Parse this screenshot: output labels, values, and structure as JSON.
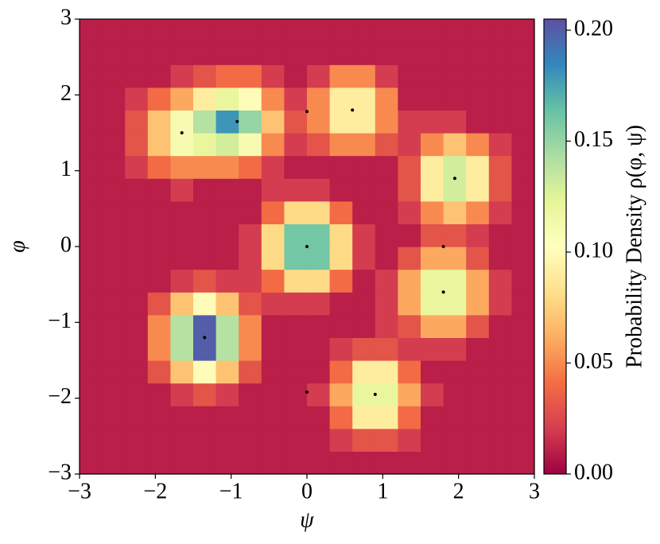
{
  "chart_data": {
    "type": "heatmap",
    "xlabel": "ψ",
    "ylabel": "φ",
    "xlim": [
      -3,
      3
    ],
    "ylim": [
      -3,
      3
    ],
    "xticks": [
      {
        "value": -3,
        "label": "−3"
      },
      {
        "value": -2,
        "label": "−2"
      },
      {
        "value": -1,
        "label": "−1"
      },
      0,
      1,
      2,
      3
    ],
    "yticks": [
      {
        "value": -3,
        "label": "−3"
      },
      {
        "value": -2,
        "label": "−2"
      },
      {
        "value": -1,
        "label": "−1"
      },
      0,
      1,
      2,
      3
    ],
    "values": [
      [
        0.01,
        0.01,
        0.01,
        0.01,
        0.01,
        0.01,
        0.01,
        0.01,
        0.01,
        0.01,
        0.01,
        0.01,
        0.01,
        0.01,
        0.01,
        0.01,
        0.01,
        0.01,
        0.01,
        0.01
      ],
      [
        0.01,
        0.01,
        0.01,
        0.01,
        0.01,
        0.01,
        0.01,
        0.01,
        0.01,
        0.01,
        0.01,
        0.02,
        0.03,
        0.03,
        0.02,
        0.01,
        0.01,
        0.01,
        0.01,
        0.01
      ],
      [
        0.01,
        0.01,
        0.01,
        0.01,
        0.01,
        0.01,
        0.01,
        0.01,
        0.01,
        0.01,
        0.01,
        0.04,
        0.09,
        0.09,
        0.04,
        0.01,
        0.01,
        0.01,
        0.01,
        0.01
      ],
      [
        0.01,
        0.01,
        0.01,
        0.01,
        0.02,
        0.03,
        0.02,
        0.01,
        0.01,
        0.01,
        0.02,
        0.06,
        0.12,
        0.12,
        0.06,
        0.02,
        0.01,
        0.01,
        0.01,
        0.01
      ],
      [
        0.01,
        0.01,
        0.01,
        0.03,
        0.07,
        0.1,
        0.07,
        0.03,
        0.01,
        0.01,
        0.01,
        0.04,
        0.09,
        0.09,
        0.04,
        0.01,
        0.01,
        0.01,
        0.01,
        0.01
      ],
      [
        0.01,
        0.01,
        0.01,
        0.05,
        0.14,
        0.2,
        0.14,
        0.05,
        0.01,
        0.01,
        0.01,
        0.02,
        0.03,
        0.03,
        0.02,
        0.02,
        0.02,
        0.01,
        0.01,
        0.01
      ],
      [
        0.01,
        0.01,
        0.01,
        0.05,
        0.14,
        0.2,
        0.14,
        0.05,
        0.01,
        0.01,
        0.01,
        0.01,
        0.01,
        0.02,
        0.03,
        0.06,
        0.06,
        0.03,
        0.01,
        0.01
      ],
      [
        0.01,
        0.01,
        0.01,
        0.03,
        0.07,
        0.1,
        0.07,
        0.03,
        0.02,
        0.02,
        0.02,
        0.01,
        0.01,
        0.02,
        0.06,
        0.12,
        0.12,
        0.06,
        0.02,
        0.01
      ],
      [
        0.01,
        0.01,
        0.01,
        0.01,
        0.02,
        0.03,
        0.02,
        0.02,
        0.04,
        0.08,
        0.08,
        0.04,
        0.01,
        0.02,
        0.06,
        0.12,
        0.12,
        0.06,
        0.02,
        0.01
      ],
      [
        0.01,
        0.01,
        0.01,
        0.01,
        0.01,
        0.01,
        0.01,
        0.02,
        0.08,
        0.16,
        0.16,
        0.08,
        0.02,
        0.01,
        0.03,
        0.06,
        0.06,
        0.03,
        0.01,
        0.01
      ],
      [
        0.01,
        0.01,
        0.01,
        0.01,
        0.01,
        0.01,
        0.01,
        0.02,
        0.08,
        0.16,
        0.16,
        0.08,
        0.02,
        0.01,
        0.01,
        0.03,
        0.03,
        0.02,
        0.01,
        0.01
      ],
      [
        0.01,
        0.01,
        0.01,
        0.01,
        0.01,
        0.01,
        0.01,
        0.01,
        0.04,
        0.08,
        0.08,
        0.04,
        0.01,
        0.01,
        0.02,
        0.05,
        0.07,
        0.05,
        0.02,
        0.01
      ],
      [
        0.01,
        0.01,
        0.01,
        0.01,
        0.02,
        0.01,
        0.01,
        0.01,
        0.02,
        0.02,
        0.02,
        0.01,
        0.01,
        0.01,
        0.03,
        0.09,
        0.13,
        0.09,
        0.03,
        0.01
      ],
      [
        0.01,
        0.01,
        0.02,
        0.04,
        0.05,
        0.05,
        0.05,
        0.04,
        0.02,
        0.01,
        0.01,
        0.01,
        0.01,
        0.01,
        0.03,
        0.09,
        0.13,
        0.09,
        0.03,
        0.01
      ],
      [
        0.01,
        0.01,
        0.03,
        0.07,
        0.11,
        0.12,
        0.13,
        0.11,
        0.05,
        0.02,
        0.03,
        0.05,
        0.05,
        0.03,
        0.02,
        0.05,
        0.07,
        0.05,
        0.02,
        0.01
      ],
      [
        0.01,
        0.01,
        0.03,
        0.07,
        0.11,
        0.14,
        0.18,
        0.15,
        0.07,
        0.03,
        0.05,
        0.09,
        0.09,
        0.05,
        0.02,
        0.02,
        0.02,
        0.01,
        0.01,
        0.01
      ],
      [
        0.01,
        0.01,
        0.02,
        0.04,
        0.06,
        0.09,
        0.12,
        0.1,
        0.05,
        0.02,
        0.05,
        0.09,
        0.09,
        0.05,
        0.01,
        0.01,
        0.01,
        0.01,
        0.01,
        0.01
      ],
      [
        0.01,
        0.01,
        0.01,
        0.01,
        0.02,
        0.03,
        0.04,
        0.04,
        0.02,
        0.01,
        0.02,
        0.05,
        0.05,
        0.02,
        0.01,
        0.01,
        0.01,
        0.01,
        0.01,
        0.01
      ],
      [
        0.01,
        0.01,
        0.01,
        0.01,
        0.01,
        0.01,
        0.01,
        0.01,
        0.01,
        0.01,
        0.01,
        0.01,
        0.01,
        0.01,
        0.01,
        0.01,
        0.01,
        0.01,
        0.01,
        0.01
      ],
      [
        0.01,
        0.01,
        0.01,
        0.01,
        0.01,
        0.01,
        0.01,
        0.01,
        0.01,
        0.01,
        0.01,
        0.01,
        0.01,
        0.01,
        0.01,
        0.01,
        0.01,
        0.01,
        0.01,
        0.01
      ]
    ],
    "points": {
      "color": "#000000",
      "x": [
        -1.65,
        -0.92,
        0,
        0.6,
        1.95,
        1.8,
        0,
        1.8,
        -1.35,
        0,
        0.9
      ],
      "y": [
        1.5,
        1.65,
        1.78,
        1.8,
        0.9,
        0,
        0,
        -0.6,
        -1.2,
        -1.92,
        -1.95
      ]
    },
    "colormap": [
      "#9e0142",
      "#d53e4f",
      "#f46d43",
      "#fdae61",
      "#fee08b",
      "#ffffbf",
      "#e6f598",
      "#abdda4",
      "#66c2a5",
      "#3288bd",
      "#5e4fa2"
    ],
    "colorbar": {
      "label": "Probability Density ρ(φ, ψ)",
      "lim": [
        0,
        0.205
      ],
      "ticks": [
        {
          "value": 0,
          "label": "0.00"
        },
        {
          "value": 0.05,
          "label": "0.05"
        },
        {
          "value": 0.1,
          "label": "0.10"
        },
        {
          "value": 0.15,
          "label": "0.15"
        },
        {
          "value": 0.2,
          "label": "0.20"
        }
      ]
    }
  }
}
